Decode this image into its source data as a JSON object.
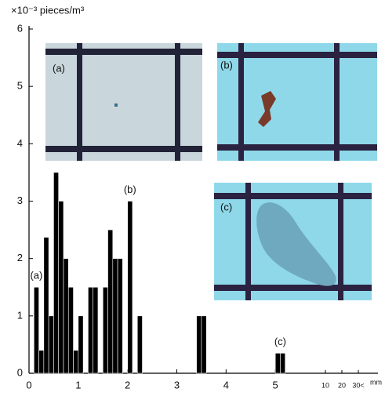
{
  "chart_data": {
    "type": "histogram",
    "y_label": "×10⁻³ pieces/m³",
    "x_label": "mm",
    "bins": [
      0.1,
      0.2,
      0.3,
      0.4,
      0.5,
      0.6,
      0.7,
      0.8,
      0.9,
      1.0,
      1.1,
      1.2,
      1.3,
      1.4,
      1.5,
      1.6,
      1.7,
      1.8,
      1.9,
      2.0,
      2.1,
      2.2,
      2.3,
      2.4,
      2.5,
      2.6,
      2.7,
      2.8,
      2.9,
      3.0,
      3.1,
      3.2,
      3.3,
      3.4,
      3.5,
      3.6,
      3.7,
      3.8,
      3.9,
      4.0,
      4.1,
      4.2,
      4.3,
      4.4,
      4.5,
      4.6,
      4.7,
      4.8,
      4.9,
      5.0,
      5.1,
      5.2
    ],
    "values": [
      1.5,
      0.4,
      2.37,
      1.0,
      3.5,
      3.0,
      2.0,
      1.5,
      0.4,
      1.0,
      0,
      1.5,
      1.5,
      0,
      1.5,
      2.5,
      2.0,
      2.0,
      0,
      3.0,
      0,
      1.0,
      0,
      0,
      0,
      0,
      0,
      0,
      0,
      0,
      0,
      0,
      0,
      1.0,
      1.0,
      0,
      0,
      0,
      0,
      0,
      0,
      0,
      0,
      0,
      0,
      0,
      0,
      0,
      0,
      0.35,
      0.35
    ],
    "color": "#000000",
    "xlim": [
      0,
      5.3
    ],
    "xticks": [
      0,
      1,
      2,
      3,
      4,
      5
    ],
    "extra_xticks": [
      {
        "value": 10,
        "label": "10"
      },
      {
        "value": 20,
        "label": "20"
      },
      {
        "value": 30,
        "label": "30<"
      }
    ],
    "ylim": [
      0,
      6
    ],
    "yticks": [
      0,
      1,
      2,
      3,
      4,
      5,
      6
    ],
    "annotations": [
      {
        "text": "(a)",
        "x": 0.15,
        "y": 1.5
      },
      {
        "text": "(b)",
        "x": 2.05,
        "y": 3.0
      },
      {
        "text": "(c)",
        "x": 5.1,
        "y": 0.35
      }
    ],
    "photos": [
      "(a)",
      "(b)",
      "(c)"
    ]
  }
}
